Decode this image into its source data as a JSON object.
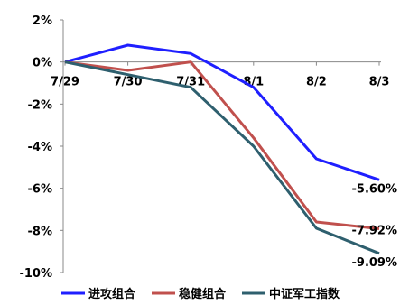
{
  "chart_data": {
    "type": "line",
    "x": [
      "7/29",
      "7/30",
      "7/31",
      "8/1",
      "8/2",
      "8/3"
    ],
    "series": [
      {
        "name": "进攻组合",
        "values": [
          0,
          0.8,
          0.4,
          -1.2,
          -4.6,
          -5.6
        ],
        "color": "#1f1fff",
        "end_label": "-5.60%"
      },
      {
        "name": "稳健组合",
        "values": [
          0,
          -0.4,
          0.0,
          -3.6,
          -7.6,
          -7.92
        ],
        "color": "#c0504d",
        "end_label": "-7.92%"
      },
      {
        "name": "中证军工指数",
        "values": [
          0,
          -0.6,
          -1.2,
          -4.0,
          -7.9,
          -9.09
        ],
        "color": "#2e5f6e",
        "end_label": "-9.09%"
      }
    ],
    "ylim": [
      -10,
      2
    ],
    "y_ticks": [
      "2%",
      "0%",
      "-2%",
      "-4%",
      "-6%",
      "-8%",
      "-10%"
    ],
    "title": "",
    "xlabel": "",
    "ylabel": "",
    "grid": false,
    "legend_position": "bottom"
  }
}
